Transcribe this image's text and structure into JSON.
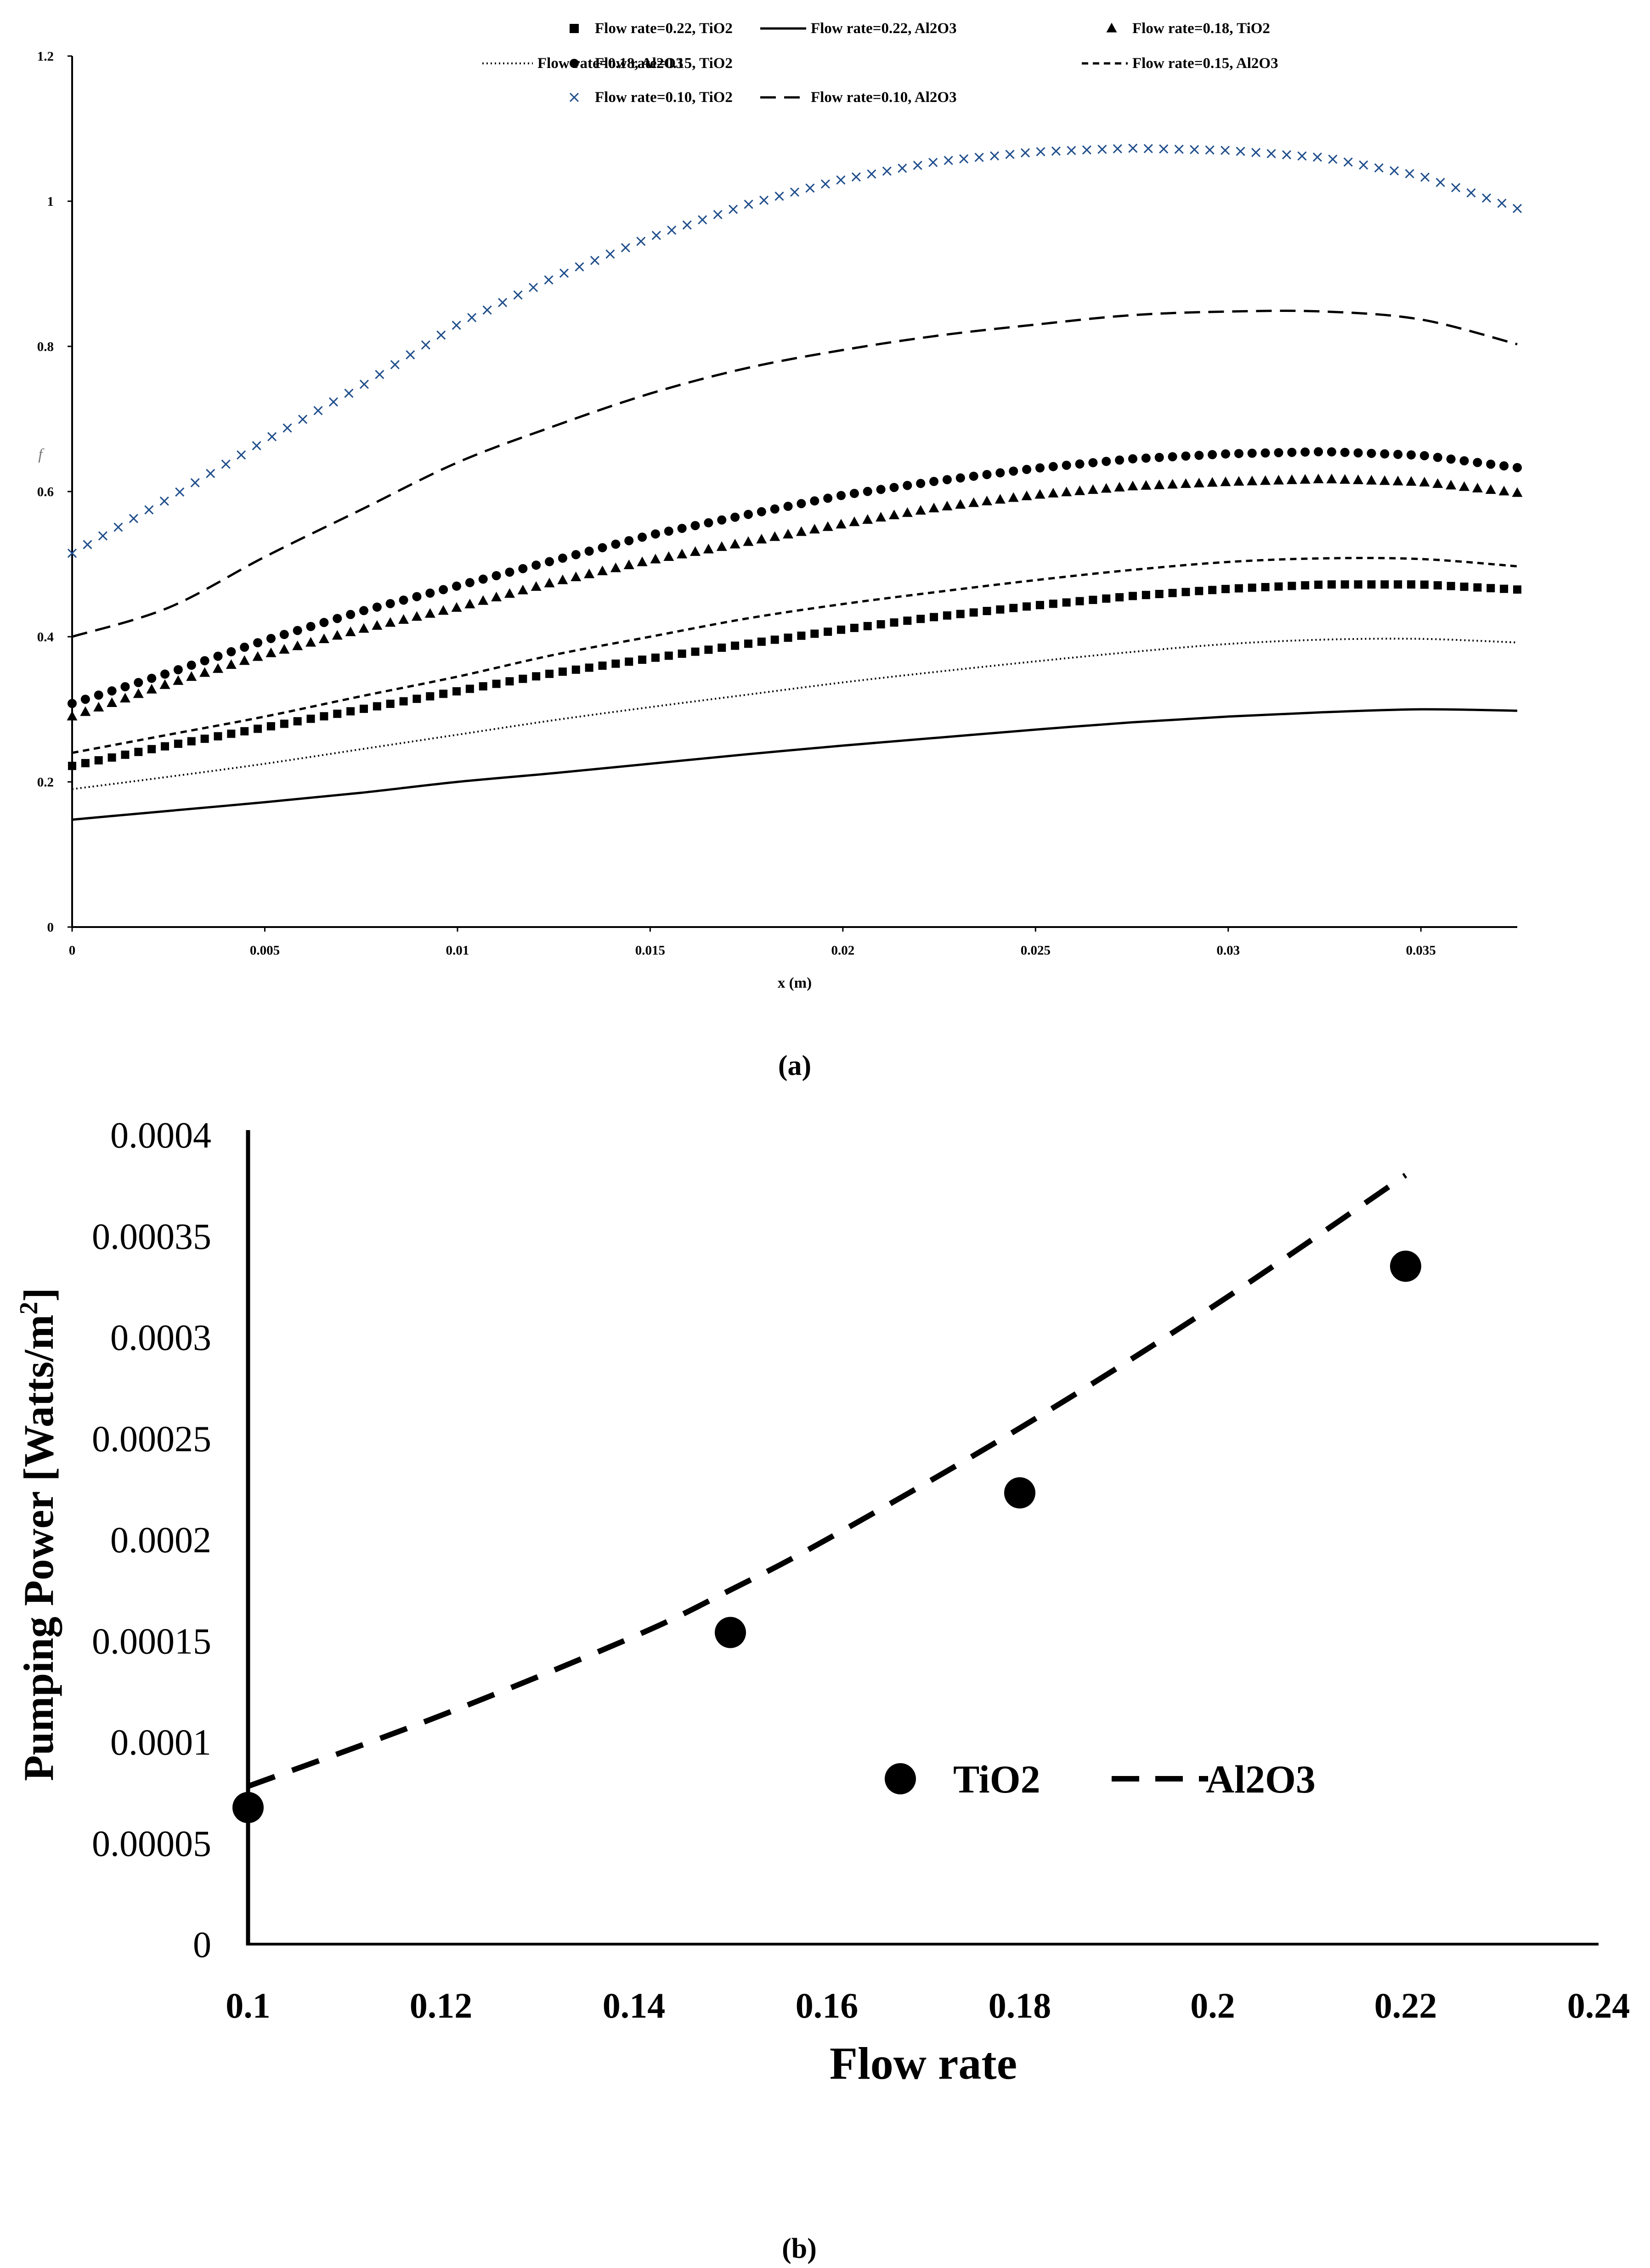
{
  "colors": {
    "black": "#000000",
    "blue_marker": "#1f4e8c",
    "background": "#ffffff"
  },
  "chart_data": [
    {
      "type": "line",
      "panel_label": "(a)",
      "xlabel": "x (m)",
      "ylabel": "f",
      "xlim": [
        0,
        0.0375
      ],
      "ylim": [
        0,
        1.2
      ],
      "x_ticks": [
        {
          "value": 0,
          "label": "0"
        },
        {
          "value": 0.005,
          "label": "0.005"
        },
        {
          "value": 0.01,
          "label": "0.01"
        },
        {
          "value": 0.015,
          "label": "0.015"
        },
        {
          "value": 0.02,
          "label": "0.02"
        },
        {
          "value": 0.025,
          "label": "0.025"
        },
        {
          "value": 0.03,
          "label": "0.03"
        },
        {
          "value": 0.035,
          "label": "0.035"
        }
      ],
      "y_ticks": [
        {
          "value": 0,
          "label": "0"
        },
        {
          "value": 0.2,
          "label": "0.2"
        },
        {
          "value": 0.4,
          "label": "0.4"
        },
        {
          "value": 0.6,
          "label": "0.6"
        },
        {
          "value": 0.8,
          "label": "0.8"
        },
        {
          "value": 1.0,
          "label": "1"
        },
        {
          "value": 1.2,
          "label": "1.2"
        }
      ],
      "x": [
        0,
        0.0025,
        0.005,
        0.0075,
        0.01,
        0.0125,
        0.015,
        0.0175,
        0.02,
        0.0225,
        0.025,
        0.0275,
        0.03,
        0.0325,
        0.035,
        0.0375
      ],
      "series": [
        {
          "name": "Flow rate=0.22, TiO2",
          "style": "square",
          "values": [
            0.222,
            0.25,
            0.275,
            0.3,
            0.325,
            0.35,
            0.37,
            0.39,
            0.41,
            0.428,
            0.443,
            0.456,
            0.466,
            0.472,
            0.472,
            0.465
          ]
        },
        {
          "name": "Flow rate=0.22, Al2O3",
          "style": "solid",
          "values": [
            0.148,
            0.16,
            0.172,
            0.185,
            0.2,
            0.212,
            0.225,
            0.238,
            0.25,
            0.261,
            0.272,
            0.282,
            0.29,
            0.296,
            0.3,
            0.298
          ]
        },
        {
          "name": "Flow rate=0.18, TiO2",
          "style": "triangle",
          "values": [
            0.29,
            0.335,
            0.375,
            0.41,
            0.44,
            0.475,
            0.505,
            0.53,
            0.555,
            0.578,
            0.595,
            0.607,
            0.613,
            0.617,
            0.613,
            0.598
          ]
        },
        {
          "name": "Flow rate=0.18, Al2O3",
          "style": "dotted",
          "values": [
            0.19,
            0.207,
            0.225,
            0.245,
            0.265,
            0.285,
            0.303,
            0.32,
            0.337,
            0.352,
            0.366,
            0.379,
            0.39,
            0.396,
            0.397,
            0.392
          ]
        },
        {
          "name": "Flow rate=0.15, TiO2",
          "style": "circle",
          "values": [
            0.308,
            0.35,
            0.395,
            0.435,
            0.47,
            0.505,
            0.54,
            0.568,
            0.595,
            0.615,
            0.632,
            0.645,
            0.652,
            0.655,
            0.65,
            0.633
          ]
        },
        {
          "name": "Flow rate=0.15, Al2O3",
          "style": "short-dash",
          "values": [
            0.24,
            0.265,
            0.29,
            0.318,
            0.345,
            0.375,
            0.4,
            0.425,
            0.445,
            0.462,
            0.478,
            0.492,
            0.503,
            0.508,
            0.507,
            0.497
          ]
        },
        {
          "name": "Flow rate=0.10, TiO2",
          "style": "cross",
          "values": [
            0.515,
            0.59,
            0.67,
            0.745,
            0.83,
            0.895,
            0.95,
            0.995,
            1.03,
            1.055,
            1.068,
            1.073,
            1.07,
            1.06,
            1.035,
            0.99
          ]
        },
        {
          "name": "Flow rate=0.10, Al2O3",
          "style": "long-dash",
          "values": [
            0.4,
            0.44,
            0.51,
            0.575,
            0.64,
            0.69,
            0.735,
            0.77,
            0.795,
            0.815,
            0.83,
            0.843,
            0.848,
            0.848,
            0.837,
            0.803
          ]
        }
      ]
    },
    {
      "type": "scatter",
      "panel_label": "(b)",
      "xlabel": "Flow rate",
      "ylabel": "Pumping Power [Watts/m",
      "ylabel_superscript": "2",
      "ylabel_close": "]",
      "xlim": [
        0.1,
        0.24
      ],
      "ylim": [
        0,
        0.0004
      ],
      "x_ticks": [
        {
          "value": 0.1,
          "label": "0.1"
        },
        {
          "value": 0.12,
          "label": "0.12"
        },
        {
          "value": 0.14,
          "label": "0.14"
        },
        {
          "value": 0.16,
          "label": "0.16"
        },
        {
          "value": 0.18,
          "label": "0.18"
        },
        {
          "value": 0.2,
          "label": "0.2"
        },
        {
          "value": 0.22,
          "label": "0.22"
        },
        {
          "value": 0.24,
          "label": "0.24"
        }
      ],
      "y_ticks": [
        {
          "value": 0,
          "label": "0"
        },
        {
          "value": 5e-05,
          "label": "0.00005"
        },
        {
          "value": 0.0001,
          "label": "0.0001"
        },
        {
          "value": 0.00015,
          "label": "0.00015"
        },
        {
          "value": 0.0002,
          "label": "0.0002"
        },
        {
          "value": 0.00025,
          "label": "0.00025"
        },
        {
          "value": 0.0003,
          "label": "0.0003"
        },
        {
          "value": 0.00035,
          "label": "0.00035"
        },
        {
          "value": 0.0004,
          "label": "0.0004"
        }
      ],
      "series": [
        {
          "name": "TiO2",
          "style": "circle",
          "x": [
            0.1,
            0.15,
            0.18,
            0.22
          ],
          "values": [
            6.75e-05,
            0.000154,
            0.000223,
            0.000335
          ]
        },
        {
          "name": "Al2O3",
          "style": "long-dash",
          "x": [
            0.1,
            0.12,
            0.14,
            0.15,
            0.16,
            0.18,
            0.2,
            0.22
          ],
          "values": [
            7.8e-05,
            0.000113,
            0.000152,
            0.000175,
            0.0002,
            0.000255,
            0.000315,
            0.00038
          ]
        }
      ]
    }
  ]
}
